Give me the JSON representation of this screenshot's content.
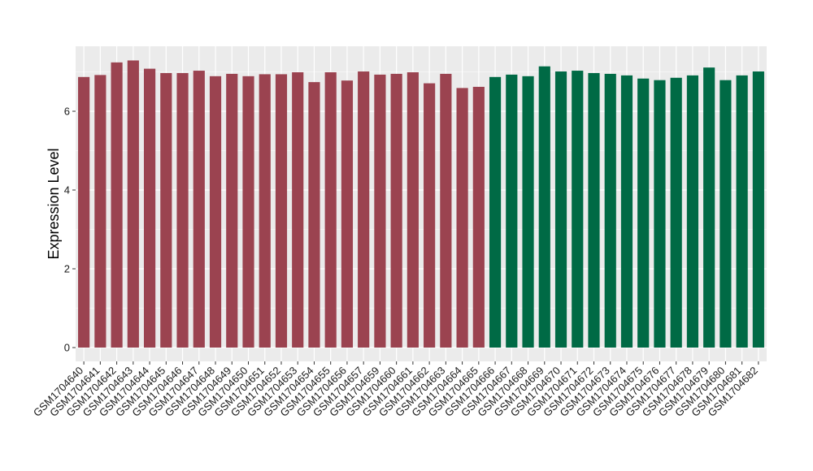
{
  "chart_data": {
    "type": "bar",
    "title": "",
    "xlabel": "",
    "ylabel": "Expression Level",
    "ylim": [
      0,
      7.6
    ],
    "yticks": [
      0,
      2,
      4,
      6
    ],
    "grid": true,
    "legend": "none",
    "colors": {
      "group_1": "#9b4350",
      "group_2": "#006a45",
      "panel_bg": "#ebebeb",
      "grid": "#ffffff"
    },
    "categories": [
      "GSM1704640",
      "GSM1704641",
      "GSM1704642",
      "GSM1704643",
      "GSM1704644",
      "GSM1704645",
      "GSM1704646",
      "GSM1704647",
      "GSM1704648",
      "GSM1704649",
      "GSM1704650",
      "GSM1704651",
      "GSM1704652",
      "GSM1704653",
      "GSM1704654",
      "GSM1704655",
      "GSM1704656",
      "GSM1704657",
      "GSM1704659",
      "GSM1704660",
      "GSM1704661",
      "GSM1704662",
      "GSM1704663",
      "GSM1704664",
      "GSM1704665",
      "GSM1704666",
      "GSM1704667",
      "GSM1704668",
      "GSM1704669",
      "GSM1704670",
      "GSM1704671",
      "GSM1704672",
      "GSM1704673",
      "GSM1704674",
      "GSM1704675",
      "GSM1704676",
      "GSM1704677",
      "GSM1704678",
      "GSM1704679",
      "GSM1704680",
      "GSM1704681",
      "GSM1704682"
    ],
    "values": [
      6.87,
      6.92,
      7.24,
      7.29,
      7.08,
      6.97,
      6.97,
      7.03,
      6.89,
      6.95,
      6.89,
      6.94,
      6.94,
      6.99,
      6.74,
      6.99,
      6.78,
      7.01,
      6.93,
      6.95,
      6.99,
      6.71,
      6.95,
      6.59,
      6.62,
      6.87,
      6.93,
      6.89,
      7.14,
      7.01,
      7.03,
      6.97,
      6.95,
      6.91,
      6.83,
      6.79,
      6.85,
      6.91,
      7.11,
      6.79,
      6.91,
      7.01
    ],
    "groups": [
      1,
      1,
      1,
      1,
      1,
      1,
      1,
      1,
      1,
      1,
      1,
      1,
      1,
      1,
      1,
      1,
      1,
      1,
      1,
      1,
      1,
      1,
      1,
      1,
      1,
      2,
      2,
      2,
      2,
      2,
      2,
      2,
      2,
      2,
      2,
      2,
      2,
      2,
      2,
      2,
      2,
      2
    ]
  }
}
